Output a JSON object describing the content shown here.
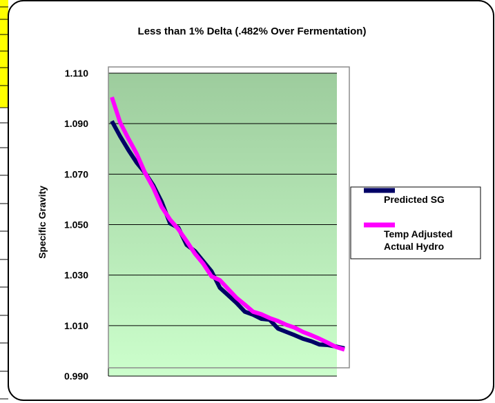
{
  "chart_data": {
    "type": "line",
    "title": "Less than 1% Delta (.482% Over Fermentation)",
    "xlabel": "",
    "ylabel": "Specific Gravity",
    "ylim": [
      0.99,
      1.11
    ],
    "yticks": [
      "0.990",
      "1.010",
      "1.030",
      "1.050",
      "1.070",
      "1.090",
      "1.110"
    ],
    "grid": true,
    "legend_position": "right",
    "x": [
      0,
      1,
      2,
      3,
      4,
      5,
      6,
      7,
      8,
      9,
      10,
      11,
      12,
      13,
      14,
      15,
      16,
      17,
      18,
      19,
      20,
      21,
      22,
      23,
      24,
      25,
      26,
      27,
      28
    ],
    "series": [
      {
        "name": "Predicted SG",
        "color": "#000066",
        "values": [
          1.091,
          1.085,
          1.0795,
          1.0745,
          1.0705,
          1.0655,
          1.059,
          1.0505,
          1.0488,
          1.042,
          1.0395,
          1.0355,
          1.0315,
          1.025,
          1.022,
          1.019,
          1.0155,
          1.0143,
          1.0127,
          1.0123,
          1.0088,
          1.0075,
          1.0062,
          1.0048,
          1.0038,
          1.0025,
          1.0023,
          1.0017,
          1.001
        ]
      },
      {
        "name": "Temp Adjusted Actual Hydro",
        "color": "#ff00ff",
        "values": [
          1.1005,
          1.0905,
          1.084,
          1.078,
          1.0705,
          1.0645,
          1.057,
          1.052,
          1.0482,
          1.0435,
          1.0385,
          1.0345,
          1.0295,
          1.028,
          1.0245,
          1.021,
          1.0183,
          1.0155,
          1.0145,
          1.013,
          1.0118,
          1.0103,
          1.0092,
          1.0075,
          1.0062,
          1.0048,
          1.0032,
          1.0015,
          1.0005
        ]
      }
    ]
  }
}
